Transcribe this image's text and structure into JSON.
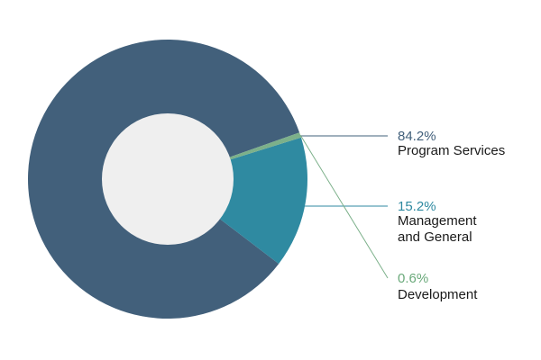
{
  "chart_data": {
    "type": "pie",
    "variant": "donut",
    "title": "",
    "legend_placement": "right",
    "slices": [
      {
        "name": "Program Services",
        "value": 84.2,
        "label": "84.2%",
        "name_lines": [
          "Program Services"
        ],
        "color": "#42607b",
        "label_color": "#42607b"
      },
      {
        "name": "Management and General",
        "value": 15.2,
        "label": "15.2%",
        "name_lines": [
          "Management",
          "and General"
        ],
        "color": "#2f8aa1",
        "label_color": "#2f8aa1"
      },
      {
        "name": "Development",
        "value": 0.6,
        "label": "0.6%",
        "name_lines": [
          "Development"
        ],
        "color": "#7cb08a",
        "label_color": "#6aa97a"
      }
    ],
    "hole_color": "#efefef"
  }
}
